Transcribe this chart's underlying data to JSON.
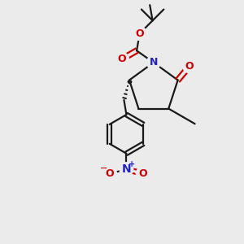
{
  "background_color": "#ebebeb",
  "bond_color": "#1a1a1a",
  "n_color": "#2020cc",
  "o_color": "#cc0000",
  "line_width": 1.6,
  "figsize": [
    3.0,
    3.0
  ],
  "dpi": 100,
  "xlim": [
    0,
    10
  ],
  "ylim": [
    0,
    10
  ]
}
